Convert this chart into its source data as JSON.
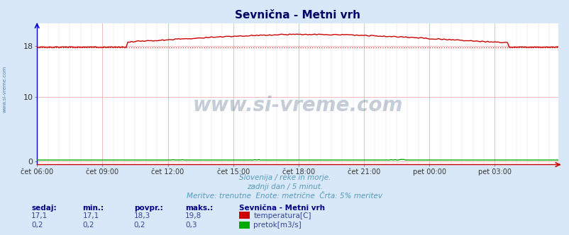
{
  "title": "Sevnična - Metni vrh",
  "bg_color": "#d8e8f8",
  "plot_bg_color": "#ffffff",
  "temp_color": "#cc0000",
  "flow_color": "#00aa00",
  "dashed_line_value": 17.8,
  "x_labels": [
    "čet 06:00",
    "čet 09:00",
    "čet 12:00",
    "čet 15:00",
    "čet 18:00",
    "čet 21:00",
    "pet 00:00",
    "pet 03:00"
  ],
  "y_ticks": [
    0,
    10,
    18
  ],
  "y_lim": [
    -0.5,
    21.5
  ],
  "x_lim": [
    0,
    287
  ],
  "footer_line1": "Slovenija / reke in morje.",
  "footer_line2": "zadnji dan / 5 minut.",
  "footer_line3": "Meritve: trenutne  Enote: metrične  Črta: 5% meritev",
  "footer_color": "#5599bb",
  "watermark": "www.si-vreme.com",
  "watermark_color": "#1a3a6a",
  "sidebar_text": "www.si-vreme.com",
  "sidebar_color": "#4477aa",
  "stats_header": [
    "sedaj:",
    "min.:",
    "povpr.:",
    "maks.:"
  ],
  "temp_stats_str": [
    "17,1",
    "17,1",
    "18,3",
    "19,8"
  ],
  "flow_stats_str": [
    "0,2",
    "0,2",
    "0,2",
    "0,3"
  ],
  "legend_title": "Sevnična - Metni vrh",
  "legend_temp_label": "temperatura[C]",
  "legend_flow_label": "pretok[m3/s]",
  "stats_color": "#334499",
  "stats_header_color": "#000088",
  "grid_major_color": "#e8a0a0",
  "grid_minor_color": "#f0d0d0"
}
